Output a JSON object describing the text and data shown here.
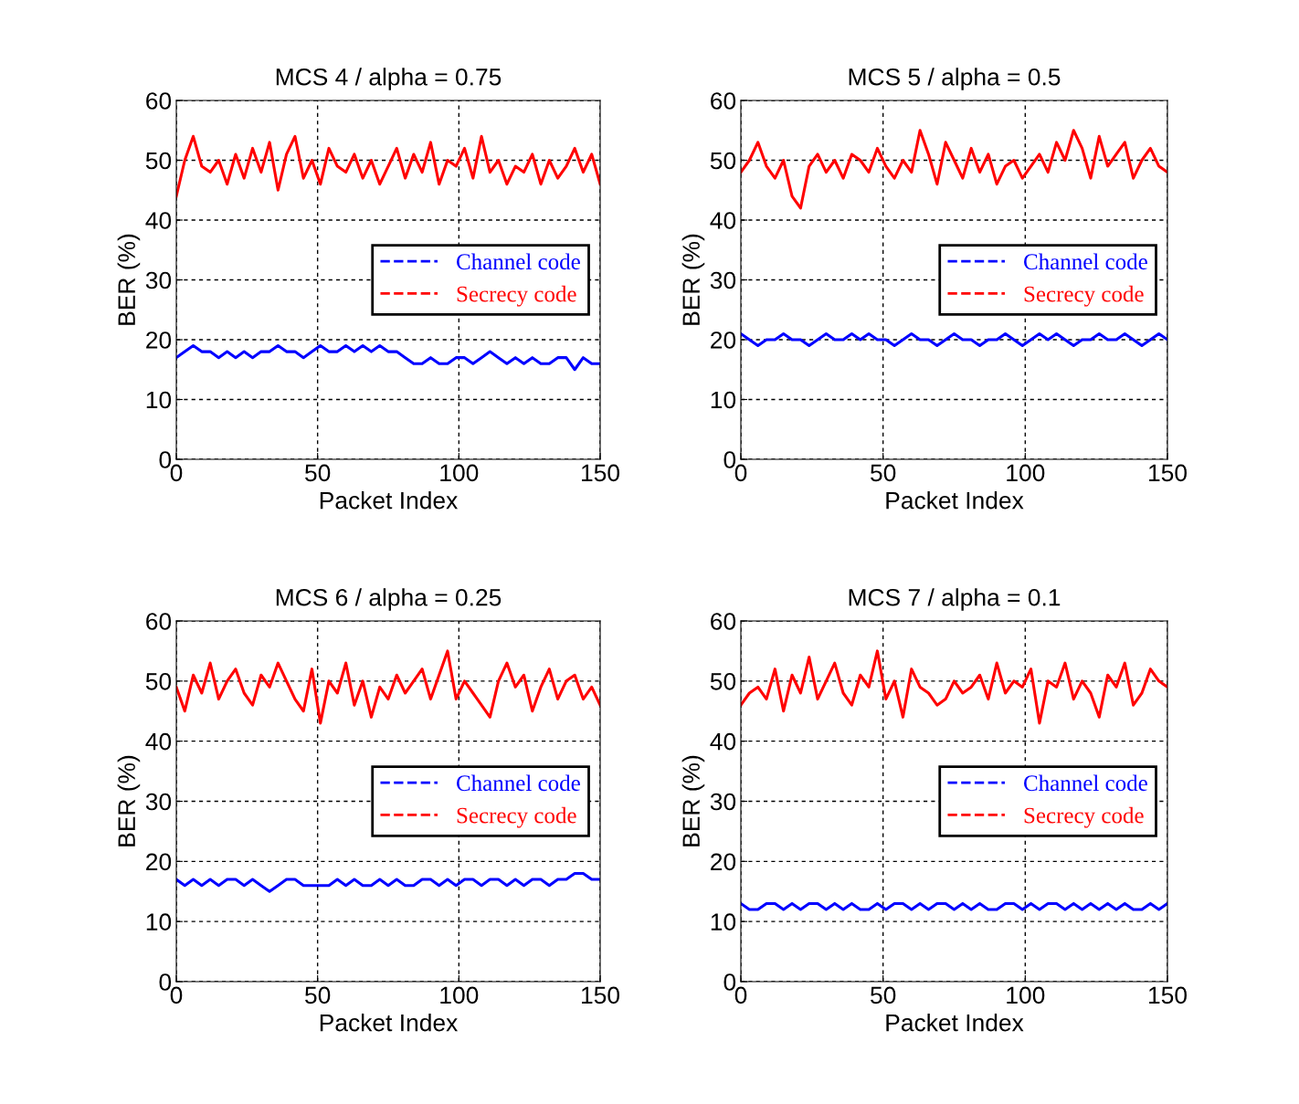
{
  "chart_data": [
    {
      "type": "line",
      "title": "MCS 4 / alpha = 0.75",
      "xlabel": "Packet Index",
      "ylabel": "BER (%)",
      "xlim": [
        0,
        150
      ],
      "ylim": [
        0,
        60
      ],
      "xticks": [
        0,
        50,
        100,
        150
      ],
      "yticks": [
        0,
        10,
        20,
        30,
        40,
        50,
        60
      ],
      "grid": true,
      "legend": "right",
      "line_style": "solid",
      "x": [
        0,
        3,
        6,
        9,
        12,
        15,
        18,
        21,
        24,
        27,
        30,
        33,
        36,
        39,
        42,
        45,
        48,
        51,
        54,
        57,
        60,
        63,
        66,
        69,
        72,
        75,
        78,
        81,
        84,
        87,
        90,
        93,
        96,
        99,
        102,
        105,
        108,
        111,
        114,
        117,
        120,
        123,
        126,
        129,
        132,
        135,
        138,
        141,
        144,
        147,
        150
      ],
      "series": [
        {
          "name": "Channel code",
          "color": "#0000ff",
          "values": [
            17,
            18,
            19,
            18,
            18,
            17,
            18,
            17,
            18,
            17,
            18,
            18,
            19,
            18,
            18,
            17,
            18,
            19,
            18,
            18,
            19,
            18,
            19,
            18,
            19,
            18,
            18,
            17,
            16,
            16,
            17,
            16,
            16,
            17,
            17,
            16,
            17,
            18,
            17,
            16,
            17,
            16,
            17,
            16,
            16,
            17,
            17,
            15,
            17,
            16,
            16
          ]
        },
        {
          "name": "Secrecy code",
          "color": "#ff0000",
          "values": [
            44,
            50,
            54,
            49,
            48,
            50,
            46,
            51,
            47,
            52,
            48,
            53,
            45,
            51,
            54,
            47,
            50,
            46,
            52,
            49,
            48,
            51,
            47,
            50,
            46,
            49,
            52,
            47,
            51,
            48,
            53,
            46,
            50,
            49,
            52,
            47,
            54,
            48,
            50,
            46,
            49,
            48,
            51,
            46,
            50,
            47,
            49,
            52,
            48,
            51,
            46
          ]
        }
      ]
    },
    {
      "type": "line",
      "title": "MCS 5 / alpha = 0.5",
      "xlabel": "Packet Index",
      "ylabel": "BER (%)",
      "xlim": [
        0,
        150
      ],
      "ylim": [
        0,
        60
      ],
      "xticks": [
        0,
        50,
        100,
        150
      ],
      "yticks": [
        0,
        10,
        20,
        30,
        40,
        50,
        60
      ],
      "grid": true,
      "legend": "right",
      "line_style": "solid",
      "x": [
        0,
        3,
        6,
        9,
        12,
        15,
        18,
        21,
        24,
        27,
        30,
        33,
        36,
        39,
        42,
        45,
        48,
        51,
        54,
        57,
        60,
        63,
        66,
        69,
        72,
        75,
        78,
        81,
        84,
        87,
        90,
        93,
        96,
        99,
        102,
        105,
        108,
        111,
        114,
        117,
        120,
        123,
        126,
        129,
        132,
        135,
        138,
        141,
        144,
        147,
        150
      ],
      "series": [
        {
          "name": "Channel code",
          "color": "#0000ff",
          "values": [
            21,
            20,
            19,
            20,
            20,
            21,
            20,
            20,
            19,
            20,
            21,
            20,
            20,
            21,
            20,
            21,
            20,
            20,
            19,
            20,
            21,
            20,
            20,
            19,
            20,
            21,
            20,
            20,
            19,
            20,
            20,
            21,
            20,
            19,
            20,
            21,
            20,
            21,
            20,
            19,
            20,
            20,
            21,
            20,
            20,
            21,
            20,
            19,
            20,
            21,
            20
          ]
        },
        {
          "name": "Secrecy code",
          "color": "#ff0000",
          "values": [
            48,
            50,
            53,
            49,
            47,
            50,
            44,
            42,
            49,
            51,
            48,
            50,
            47,
            51,
            50,
            48,
            52,
            49,
            47,
            50,
            48,
            55,
            51,
            46,
            53,
            50,
            47,
            52,
            48,
            51,
            46,
            49,
            50,
            47,
            49,
            51,
            48,
            53,
            50,
            55,
            52,
            47,
            54,
            49,
            51,
            53,
            47,
            50,
            52,
            49,
            48
          ]
        }
      ]
    },
    {
      "type": "line",
      "title": "MCS 6 / alpha = 0.25",
      "xlabel": "Packet Index",
      "ylabel": "BER (%)",
      "xlim": [
        0,
        150
      ],
      "ylim": [
        0,
        60
      ],
      "xticks": [
        0,
        50,
        100,
        150
      ],
      "yticks": [
        0,
        10,
        20,
        30,
        40,
        50,
        60
      ],
      "grid": true,
      "legend": "right",
      "line_style": "solid",
      "x": [
        0,
        3,
        6,
        9,
        12,
        15,
        18,
        21,
        24,
        27,
        30,
        33,
        36,
        39,
        42,
        45,
        48,
        51,
        54,
        57,
        60,
        63,
        66,
        69,
        72,
        75,
        78,
        81,
        84,
        87,
        90,
        93,
        96,
        99,
        102,
        105,
        108,
        111,
        114,
        117,
        120,
        123,
        126,
        129,
        132,
        135,
        138,
        141,
        144,
        147,
        150
      ],
      "series": [
        {
          "name": "Channel code",
          "color": "#0000ff",
          "values": [
            17,
            16,
            17,
            16,
            17,
            16,
            17,
            17,
            16,
            17,
            16,
            15,
            16,
            17,
            17,
            16,
            16,
            16,
            16,
            17,
            16,
            17,
            16,
            16,
            17,
            16,
            17,
            16,
            16,
            17,
            17,
            16,
            17,
            16,
            17,
            17,
            16,
            17,
            17,
            16,
            17,
            16,
            17,
            17,
            16,
            17,
            17,
            18,
            18,
            17,
            17
          ]
        },
        {
          "name": "Secrecy code",
          "color": "#ff0000",
          "values": [
            49,
            45,
            51,
            48,
            53,
            47,
            50,
            52,
            48,
            46,
            51,
            49,
            53,
            50,
            47,
            45,
            52,
            43,
            50,
            48,
            53,
            46,
            50,
            44,
            49,
            47,
            51,
            48,
            50,
            52,
            47,
            51,
            55,
            47,
            50,
            48,
            46,
            44,
            50,
            53,
            49,
            51,
            45,
            49,
            52,
            47,
            50,
            51,
            47,
            49,
            46
          ]
        }
      ]
    },
    {
      "type": "line",
      "title": "MCS 7 / alpha = 0.1",
      "xlabel": "Packet Index",
      "ylabel": "BER (%)",
      "xlim": [
        0,
        150
      ],
      "ylim": [
        0,
        60
      ],
      "xticks": [
        0,
        50,
        100,
        150
      ],
      "yticks": [
        0,
        10,
        20,
        30,
        40,
        50,
        60
      ],
      "grid": true,
      "legend": "right",
      "line_style": "solid",
      "x": [
        0,
        3,
        6,
        9,
        12,
        15,
        18,
        21,
        24,
        27,
        30,
        33,
        36,
        39,
        42,
        45,
        48,
        51,
        54,
        57,
        60,
        63,
        66,
        69,
        72,
        75,
        78,
        81,
        84,
        87,
        90,
        93,
        96,
        99,
        102,
        105,
        108,
        111,
        114,
        117,
        120,
        123,
        126,
        129,
        132,
        135,
        138,
        141,
        144,
        147,
        150
      ],
      "series": [
        {
          "name": "Channel code",
          "color": "#0000ff",
          "values": [
            13,
            12,
            12,
            13,
            13,
            12,
            13,
            12,
            13,
            13,
            12,
            13,
            12,
            13,
            12,
            12,
            13,
            12,
            13,
            13,
            12,
            13,
            12,
            13,
            13,
            12,
            13,
            12,
            13,
            12,
            12,
            13,
            13,
            12,
            13,
            12,
            13,
            13,
            12,
            13,
            12,
            13,
            12,
            13,
            12,
            13,
            12,
            12,
            13,
            12,
            13
          ]
        },
        {
          "name": "Secrecy code",
          "color": "#ff0000",
          "values": [
            46,
            48,
            49,
            47,
            52,
            45,
            51,
            48,
            54,
            47,
            50,
            53,
            48,
            46,
            51,
            49,
            55,
            47,
            50,
            44,
            52,
            49,
            48,
            46,
            47,
            50,
            48,
            49,
            51,
            47,
            53,
            48,
            50,
            49,
            52,
            43,
            50,
            49,
            53,
            47,
            50,
            48,
            44,
            51,
            49,
            53,
            46,
            48,
            52,
            50,
            49
          ]
        }
      ]
    }
  ]
}
